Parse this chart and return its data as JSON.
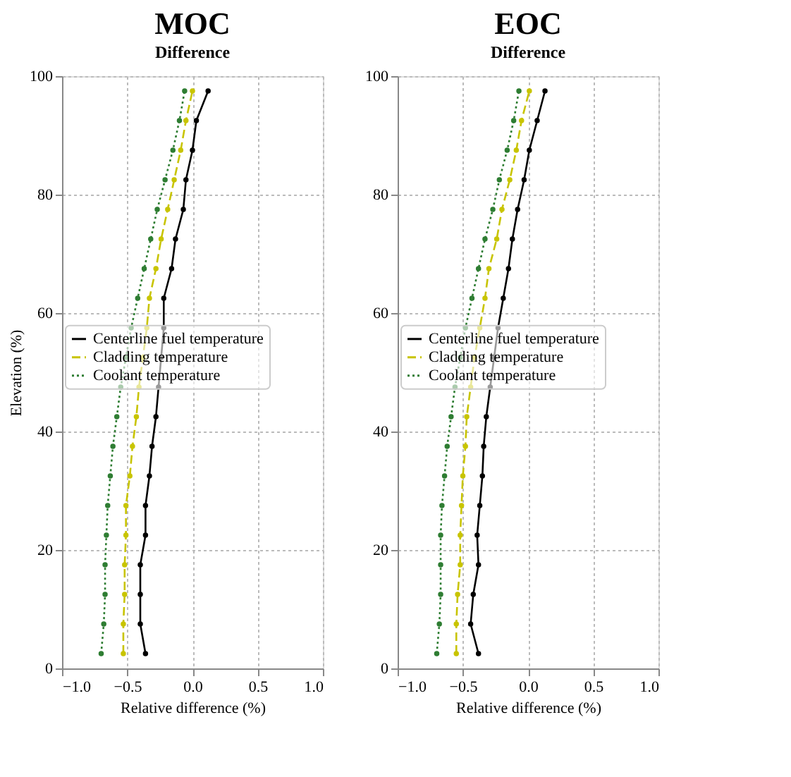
{
  "chart_data": [
    {
      "type": "line",
      "title": "MOC",
      "subtitle": "Difference",
      "xlabel": "Relative difference (%)",
      "ylabel": "Elevation (%)",
      "xlim": [
        -1,
        1
      ],
      "ylim": [
        0,
        100
      ],
      "xticks": [
        {
          "value": -1,
          "label": "−1.0"
        },
        {
          "value": -0.5,
          "label": "−0.5"
        },
        {
          "value": 0,
          "label": "0.0"
        },
        {
          "value": 0.5,
          "label": "0.5"
        },
        {
          "value": 1,
          "label": "1.0"
        }
      ],
      "yticks": [
        0,
        20,
        40,
        60,
        80,
        100
      ],
      "grid": true,
      "legend": "left",
      "marker": "circle",
      "series": [
        {
          "name": "Centerline fuel temperature",
          "color": "#000000",
          "line_style": "solid",
          "x": [
            -0.36,
            -0.4,
            -0.4,
            -0.4,
            -0.36,
            -0.36,
            -0.33,
            -0.31,
            -0.28,
            -0.26,
            -0.24,
            -0.22,
            -0.22,
            -0.16,
            -0.13,
            -0.07,
            -0.05,
            0.0,
            0.03,
            0.12
          ],
          "values": [
            2.5,
            7.5,
            12.5,
            17.5,
            22.5,
            27.5,
            32.5,
            37.5,
            42.5,
            47.5,
            52.5,
            57.5,
            62.5,
            67.5,
            72.5,
            77.5,
            82.5,
            87.5,
            92.5,
            97.5
          ]
        },
        {
          "name": "Cladding temperature",
          "color": "#c8c400",
          "line_style": "dashed",
          "x": [
            -0.53,
            -0.53,
            -0.52,
            -0.52,
            -0.51,
            -0.51,
            -0.48,
            -0.46,
            -0.43,
            -0.41,
            -0.38,
            -0.35,
            -0.33,
            -0.28,
            -0.24,
            -0.19,
            -0.14,
            -0.09,
            -0.05,
            0.0
          ],
          "values": [
            2.5,
            7.5,
            12.5,
            17.5,
            22.5,
            27.5,
            32.5,
            37.5,
            42.5,
            47.5,
            52.5,
            57.5,
            62.5,
            67.5,
            72.5,
            77.5,
            82.5,
            87.5,
            92.5,
            97.5
          ]
        },
        {
          "name": "Coolant temperature",
          "color": "#2e7d32",
          "line_style": "dotted",
          "x": [
            -0.7,
            -0.68,
            -0.67,
            -0.67,
            -0.66,
            -0.65,
            -0.63,
            -0.61,
            -0.58,
            -0.55,
            -0.51,
            -0.47,
            -0.42,
            -0.37,
            -0.32,
            -0.27,
            -0.21,
            -0.15,
            -0.1,
            -0.06
          ],
          "values": [
            2.5,
            7.5,
            12.5,
            17.5,
            22.5,
            27.5,
            32.5,
            37.5,
            42.5,
            47.5,
            52.5,
            57.5,
            62.5,
            67.5,
            72.5,
            77.5,
            82.5,
            87.5,
            92.5,
            97.5
          ]
        }
      ]
    },
    {
      "type": "line",
      "title": "EOC",
      "subtitle": "Difference",
      "xlabel": "Relative difference (%)",
      "xlim": [
        -1,
        1
      ],
      "ylim": [
        0,
        100
      ],
      "xticks": [
        {
          "value": -1,
          "label": "−1.0"
        },
        {
          "value": -0.5,
          "label": "−0.5"
        },
        {
          "value": 0,
          "label": "0.0"
        },
        {
          "value": 0.5,
          "label": "0.5"
        },
        {
          "value": 1,
          "label": "1.0"
        }
      ],
      "yticks": [
        0,
        20,
        40,
        60,
        80,
        100
      ],
      "grid": true,
      "legend": "left",
      "marker": "circle",
      "series": [
        {
          "name": "Centerline fuel temperature",
          "color": "#000000",
          "line_style": "solid",
          "x": [
            -0.38,
            -0.44,
            -0.42,
            -0.38,
            -0.39,
            -0.37,
            -0.35,
            -0.34,
            -0.32,
            -0.29,
            -0.26,
            -0.23,
            -0.19,
            -0.15,
            -0.12,
            -0.08,
            -0.03,
            0.01,
            0.07,
            0.13
          ],
          "values": [
            2.5,
            7.5,
            12.5,
            17.5,
            22.5,
            27.5,
            32.5,
            37.5,
            42.5,
            47.5,
            52.5,
            57.5,
            62.5,
            67.5,
            72.5,
            77.5,
            82.5,
            87.5,
            92.5,
            97.5
          ]
        },
        {
          "name": "Cladding temperature",
          "color": "#c8c400",
          "line_style": "dashed",
          "x": [
            -0.55,
            -0.55,
            -0.54,
            -0.52,
            -0.52,
            -0.51,
            -0.5,
            -0.48,
            -0.47,
            -0.44,
            -0.41,
            -0.37,
            -0.33,
            -0.3,
            -0.24,
            -0.2,
            -0.14,
            -0.09,
            -0.05,
            0.01
          ],
          "values": [
            2.5,
            7.5,
            12.5,
            17.5,
            22.5,
            27.5,
            32.5,
            37.5,
            42.5,
            47.5,
            52.5,
            57.5,
            62.5,
            67.5,
            72.5,
            77.5,
            82.5,
            87.5,
            92.5,
            97.5
          ]
        },
        {
          "name": "Coolant temperature",
          "color": "#2e7d32",
          "line_style": "dotted",
          "x": [
            -0.7,
            -0.68,
            -0.67,
            -0.67,
            -0.67,
            -0.66,
            -0.64,
            -0.62,
            -0.59,
            -0.56,
            -0.52,
            -0.48,
            -0.43,
            -0.38,
            -0.33,
            -0.27,
            -0.22,
            -0.16,
            -0.11,
            -0.07
          ],
          "values": [
            2.5,
            7.5,
            12.5,
            17.5,
            22.5,
            27.5,
            32.5,
            37.5,
            42.5,
            47.5,
            52.5,
            57.5,
            62.5,
            67.5,
            72.5,
            77.5,
            82.5,
            87.5,
            92.5,
            97.5
          ]
        }
      ]
    }
  ]
}
